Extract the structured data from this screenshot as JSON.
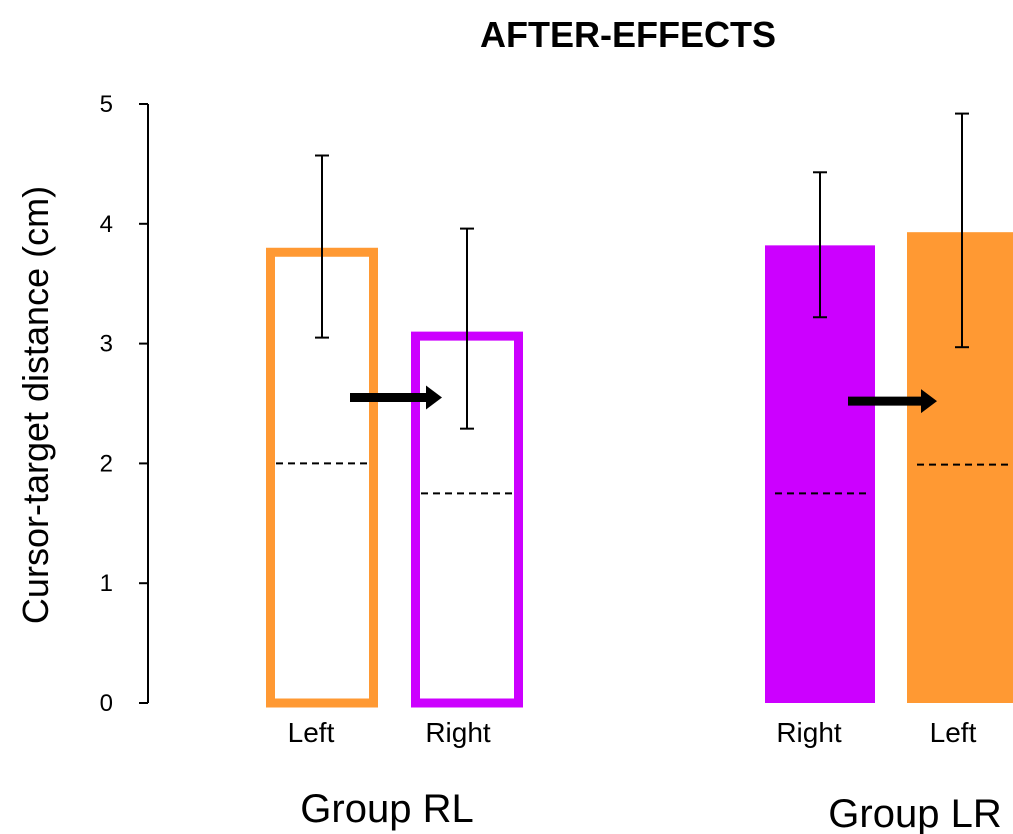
{
  "chart_data": {
    "type": "bar",
    "title": "AFTER-EFFECTS",
    "ylabel": "Cursor-target distance (cm)",
    "xlabel": "",
    "ylim": [
      0,
      5
    ],
    "yticks": [
      0,
      1,
      2,
      3,
      4,
      5
    ],
    "grid": false,
    "colors": {
      "orange": "#FF9933",
      "purple": "#CC00FF"
    },
    "groups": [
      {
        "label": "Group RL",
        "bars": [
          {
            "category": "Left",
            "value": 3.8,
            "err_low": 3.05,
            "err_high": 4.57,
            "dashed": 2.0,
            "color": "orange",
            "style": "outline"
          },
          {
            "category": "Right",
            "value": 3.1,
            "err_low": 2.29,
            "err_high": 3.96,
            "dashed": 1.75,
            "color": "purple",
            "style": "outline"
          }
        ],
        "arrow_value": 2.55
      },
      {
        "label": "Group LR",
        "bars": [
          {
            "category": "Right",
            "value": 3.82,
            "err_low": 3.22,
            "err_high": 4.43,
            "dashed": 1.75,
            "color": "purple",
            "style": "filled"
          },
          {
            "category": "Left",
            "value": 3.93,
            "err_low": 2.97,
            "err_high": 4.92,
            "dashed": 1.99,
            "color": "orange",
            "style": "filled"
          }
        ],
        "arrow_value": 2.52
      }
    ]
  }
}
